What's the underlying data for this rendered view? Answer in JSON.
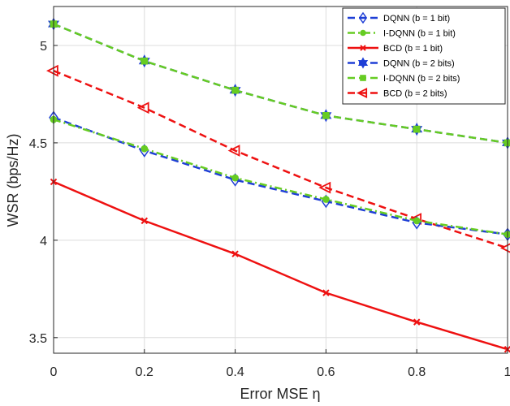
{
  "chart_data": {
    "type": "line",
    "title": "",
    "xlabel": "Error MSE η",
    "ylabel": "WSR (bps/Hz)",
    "xlim": [
      0,
      1
    ],
    "ylim": [
      3.42,
      5.2
    ],
    "x_ticks": [
      0,
      0.2,
      0.4,
      0.6,
      0.8,
      1
    ],
    "x_tick_labels": [
      "0",
      "0.2",
      "0.4",
      "0.6",
      "0.8",
      "1"
    ],
    "y_ticks": [
      3.5,
      4,
      4.5,
      5
    ],
    "y_tick_labels": [
      "3.5",
      "4",
      "4.5",
      "5"
    ],
    "grid": true,
    "legend_position": "top-right",
    "x": [
      0,
      0.2,
      0.4,
      0.6,
      0.8,
      1
    ],
    "series": [
      {
        "name": "DQNN (b = 1 bit)",
        "values": [
          4.63,
          4.46,
          4.31,
          4.2,
          4.09,
          4.03
        ],
        "color": "#1f3fd6",
        "dash": "dash",
        "marker": "diamond"
      },
      {
        "name": "I-DQNN (b = 1 bit)",
        "values": [
          4.62,
          4.47,
          4.32,
          4.21,
          4.1,
          4.03
        ],
        "color": "#66cc22",
        "dash": "dashdot",
        "marker": "circle"
      },
      {
        "name": "BCD (b = 1 bit)",
        "values": [
          4.3,
          4.1,
          3.93,
          3.73,
          3.58,
          3.44
        ],
        "color": "#ee1111",
        "dash": "solid",
        "marker": "x"
      },
      {
        "name": "DQNN (b = 2 bits)",
        "values": [
          5.11,
          4.92,
          4.77,
          4.64,
          4.57,
          4.5
        ],
        "color": "#1f3fd6",
        "dash": "dash",
        "marker": "star"
      },
      {
        "name": "I-DQNN (b = 2 bits)",
        "values": [
          5.11,
          4.92,
          4.77,
          4.64,
          4.57,
          4.5
        ],
        "color": "#66cc22",
        "dash": "dash",
        "marker": "square"
      },
      {
        "name": "BCD (b = 2 bits)",
        "values": [
          4.87,
          4.68,
          4.46,
          4.27,
          4.11,
          3.96
        ],
        "color": "#ee1111",
        "dash": "dash",
        "marker": "triangle-left"
      }
    ]
  }
}
